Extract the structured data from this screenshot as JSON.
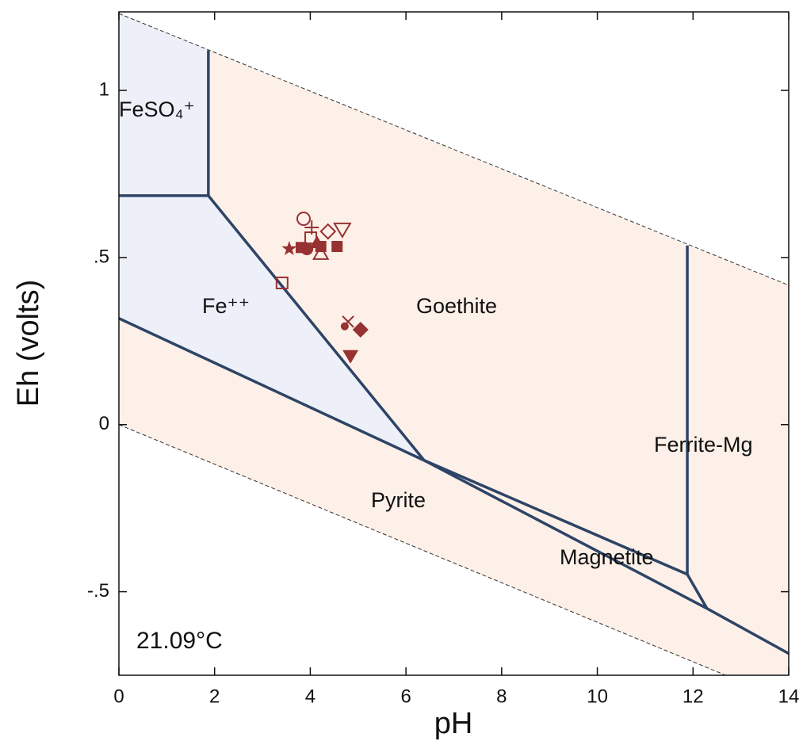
{
  "chart_data": {
    "type": "phase-diagram",
    "xlabel": "pH",
    "ylabel": "Eh (volts)",
    "annotation": "21.09°C",
    "xlim": [
      0,
      14
    ],
    "ylim": [
      -0.75,
      1.235
    ],
    "xticks": [
      0,
      2,
      4,
      6,
      8,
      10,
      12,
      14
    ],
    "yticks": [
      {
        "value": -0.5,
        "label": "-.5"
      },
      0,
      {
        "value": 0.5,
        "label": ".5"
      },
      1
    ],
    "water_limits": [
      {
        "x": [
          0,
          14
        ],
        "y": [
          1.23,
          0.417
        ]
      },
      {
        "x": [
          0,
          14
        ],
        "y": [
          0,
          -0.828
        ]
      }
    ],
    "regions": [
      {
        "label": "FeSO₄⁺",
        "color": "#edf0f8",
        "x": [
          0,
          1.87,
          1.87,
          0
        ],
        "y": [
          1.23,
          1.12,
          0.685,
          0.685
        ]
      },
      {
        "label": "Fe⁺⁺",
        "color": "#edf0f8",
        "x": [
          0,
          1.87,
          6.38,
          0
        ],
        "y": [
          0.685,
          0.685,
          -0.107,
          0.318
        ]
      },
      {
        "label": "Goethite",
        "color": "#fdf0e8",
        "x": [
          1.87,
          11.88,
          11.88,
          6.38,
          1.87
        ],
        "y": [
          1.12,
          0.536,
          -0.448,
          -0.107,
          0.685
        ]
      },
      {
        "label": "Pyrite",
        "color": "#fdf0e8",
        "x": [
          0,
          6.38,
          12.29,
          14,
          14,
          0
        ],
        "y": [
          0.318,
          -0.107,
          -0.55,
          -0.685,
          -0.828,
          0
        ]
      },
      {
        "label": "Magnetite",
        "color": "#fdf0e8",
        "x": [
          6.38,
          11.88,
          12.29
        ],
        "y": [
          -0.107,
          -0.448,
          -0.55
        ]
      },
      {
        "label": "Ferrite-Mg",
        "color": "#fdf0e8",
        "x": [
          11.88,
          14,
          14,
          12.29,
          11.88
        ],
        "y": [
          0.536,
          0.417,
          -0.685,
          -0.55,
          -0.448
        ]
      }
    ],
    "boundary_color": "#2e4466",
    "boundaries": [
      {
        "x": [
          1.87,
          1.87
        ],
        "y": [
          1.12,
          0.685
        ]
      },
      {
        "x": [
          0,
          1.87
        ],
        "y": [
          0.685,
          0.685
        ]
      },
      {
        "x": [
          1.87,
          6.38
        ],
        "y": [
          0.685,
          -0.107
        ]
      },
      {
        "x": [
          0,
          6.38
        ],
        "y": [
          0.318,
          -0.107
        ]
      },
      {
        "x": [
          6.38,
          11.88
        ],
        "y": [
          -0.107,
          -0.448
        ]
      },
      {
        "x": [
          6.38,
          12.29,
          14
        ],
        "y": [
          -0.107,
          -0.55,
          -0.685
        ]
      },
      {
        "x": [
          11.88,
          12.29
        ],
        "y": [
          -0.448,
          -0.55
        ]
      },
      {
        "x": [
          11.88,
          11.88
        ],
        "y": [
          0.536,
          -0.448
        ]
      }
    ],
    "marker_color": "#963232",
    "points": [
      {
        "x": 3.86,
        "y": 0.616,
        "marker": "open-circle"
      },
      {
        "x": 4.03,
        "y": 0.59,
        "marker": "plus"
      },
      {
        "x": 4.37,
        "y": 0.578,
        "marker": "open-diamond"
      },
      {
        "x": 4.67,
        "y": 0.583,
        "marker": "open-triangle-down"
      },
      {
        "x": 4.01,
        "y": 0.559,
        "marker": "open-square"
      },
      {
        "x": 4.14,
        "y": 0.545,
        "marker": "triangle"
      },
      {
        "x": 3.56,
        "y": 0.526,
        "marker": "star"
      },
      {
        "x": 3.81,
        "y": 0.53,
        "marker": "square"
      },
      {
        "x": 3.93,
        "y": 0.526,
        "marker": "circle"
      },
      {
        "x": 4.22,
        "y": 0.533,
        "marker": "square"
      },
      {
        "x": 4.56,
        "y": 0.533,
        "marker": "square"
      },
      {
        "x": 4.22,
        "y": 0.512,
        "marker": "open-triangle"
      },
      {
        "x": 3.41,
        "y": 0.424,
        "marker": "open-square"
      },
      {
        "x": 4.79,
        "y": 0.308,
        "marker": "cross"
      },
      {
        "x": 4.72,
        "y": 0.294,
        "marker": "small-circle"
      },
      {
        "x": 5.05,
        "y": 0.284,
        "marker": "diamond"
      },
      {
        "x": 4.84,
        "y": 0.204,
        "marker": "triangle-down"
      }
    ]
  }
}
